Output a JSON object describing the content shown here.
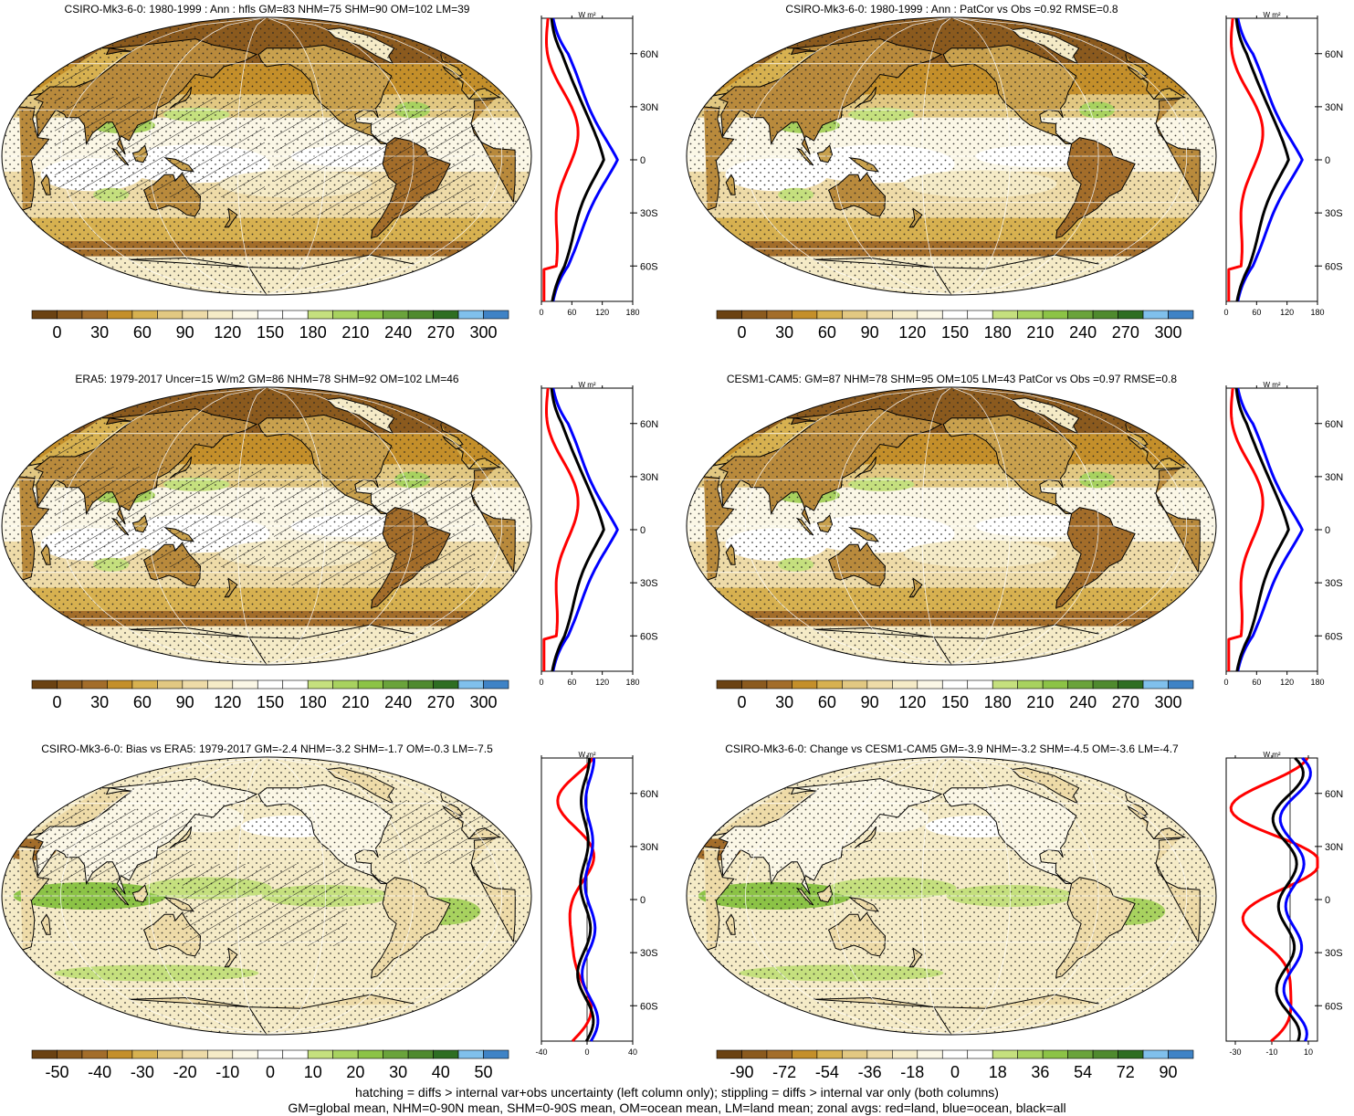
{
  "panels": [
    {
      "id": "p1",
      "title": "CSIRO-Mk3-6-0: 1980-1999 : Ann : hfls GM=83 NHM=75 SHM=90 OM=102 LM=39",
      "kind": "abs",
      "colorbar": {
        "labels": [
          "0",
          "30",
          "60",
          "90",
          "120",
          "150",
          "180",
          "210",
          "240",
          "270",
          "300"
        ]
      },
      "zonal": {
        "unit": "W m²",
        "ticks": [
          "0",
          "60",
          "120",
          "180"
        ],
        "xlim": [
          0,
          180
        ],
        "lat_labels": [
          "60N",
          "30N",
          "0",
          "30S",
          "60S"
        ]
      }
    },
    {
      "id": "p2",
      "title": "CSIRO-Mk3-6-0: 1980-1999 : Ann : PatCor vs Obs =0.92 RMSE=0.8",
      "kind": "abs",
      "colorbar": {
        "labels": [
          "0",
          "30",
          "60",
          "90",
          "120",
          "150",
          "180",
          "210",
          "240",
          "270",
          "300"
        ]
      },
      "zonal": {
        "unit": "W m²",
        "ticks": [
          "0",
          "60",
          "120",
          "180"
        ],
        "xlim": [
          0,
          180
        ],
        "lat_labels": [
          "60N",
          "30N",
          "0",
          "30S",
          "60S"
        ]
      }
    },
    {
      "id": "p3",
      "title": "ERA5: 1979-2017 Uncer=15 W/m2 GM=86 NHM=78 SHM=92 OM=102 LM=46",
      "kind": "abs",
      "colorbar": {
        "labels": [
          "0",
          "30",
          "60",
          "90",
          "120",
          "150",
          "180",
          "210",
          "240",
          "270",
          "300"
        ]
      },
      "zonal": {
        "unit": "W m²",
        "ticks": [
          "0",
          "60",
          "120",
          "180"
        ],
        "xlim": [
          0,
          180
        ],
        "lat_labels": [
          "60N",
          "30N",
          "0",
          "30S",
          "60S"
        ]
      }
    },
    {
      "id": "p4",
      "title": "CESM1-CAM5: GM=87 NHM=78 SHM=95 OM=105 LM=43 PatCor vs Obs =0.97 RMSE=0.8",
      "kind": "abs",
      "colorbar": {
        "labels": [
          "0",
          "30",
          "60",
          "90",
          "120",
          "150",
          "180",
          "210",
          "240",
          "270",
          "300"
        ]
      },
      "zonal": {
        "unit": "W m²",
        "ticks": [
          "0",
          "60",
          "120",
          "180"
        ],
        "xlim": [
          0,
          180
        ],
        "lat_labels": [
          "60N",
          "30N",
          "0",
          "30S",
          "60S"
        ]
      }
    },
    {
      "id": "p5",
      "title": "CSIRO-Mk3-6-0: Bias vs ERA5: 1979-2017 GM=-2.4 NHM=-3.2 SHM=-1.7 OM=-0.3 LM=-7.5",
      "kind": "diff",
      "colorbar": {
        "labels": [
          "-50",
          "-40",
          "-30",
          "-20",
          "-10",
          "0",
          "10",
          "20",
          "30",
          "40",
          "50"
        ]
      },
      "zonal": {
        "unit": "W m²",
        "ticks": [
          "-40",
          "0",
          "40"
        ],
        "xlim": [
          -40,
          40
        ],
        "lat_labels": [
          "60N",
          "30N",
          "0",
          "30S",
          "60S"
        ]
      }
    },
    {
      "id": "p6",
      "title": "CSIRO-Mk3-6-0: Change vs CESM1-CAM5 GM=-3.9 NHM=-3.2 SHM=-4.5 OM=-3.6 LM=-4.7",
      "kind": "diff",
      "colorbar": {
        "labels": [
          "-90",
          "-72",
          "-54",
          "-36",
          "-18",
          "0",
          "18",
          "36",
          "54",
          "72",
          "90"
        ]
      },
      "zonal": {
        "unit": "W m²",
        "ticks": [
          "-30",
          "-10",
          "10"
        ],
        "xlim": [
          -35,
          15
        ],
        "lat_labels": [
          "60N",
          "30N",
          "0",
          "30S",
          "60S"
        ]
      }
    }
  ],
  "colors": {
    "abs_palette": [
      "#6b4212",
      "#8b5a1e",
      "#a36d2a",
      "#c48f2a",
      "#d7b150",
      "#e2c882",
      "#eedba8",
      "#f5ebc7",
      "#fbf7e6",
      "#ffffff",
      "#ffffff",
      "#c5e07e",
      "#a8d25f",
      "#8cc346",
      "#6aa33b",
      "#4f8a2e",
      "#2e6e22",
      "#80c0ec",
      "#3f83c6"
    ],
    "diff_palette": [
      "#6b4212",
      "#8b5a1e",
      "#a36d2a",
      "#c48f2a",
      "#d7b150",
      "#e2c882",
      "#eedba8",
      "#f5ebc7",
      "#fbf7e6",
      "#ffffff",
      "#ffffff",
      "#c5e07e",
      "#a8d25f",
      "#8cc346",
      "#6aa33b",
      "#4f8a2e",
      "#2e6e22",
      "#80c0ec",
      "#3f83c6"
    ],
    "land": "red",
    "ocean": "blue",
    "all": "black"
  },
  "footer": {
    "line1": "hatching = diffs > internal var+obs uncertainty (left column only); stippling = diffs > internal var only (both columns)",
    "line2": "GM=global mean, NHM=0-90N mean, SHM=0-90S mean, OM=ocean mean, LM=land mean; zonal avgs: red=land, blue=ocean, black=all"
  }
}
